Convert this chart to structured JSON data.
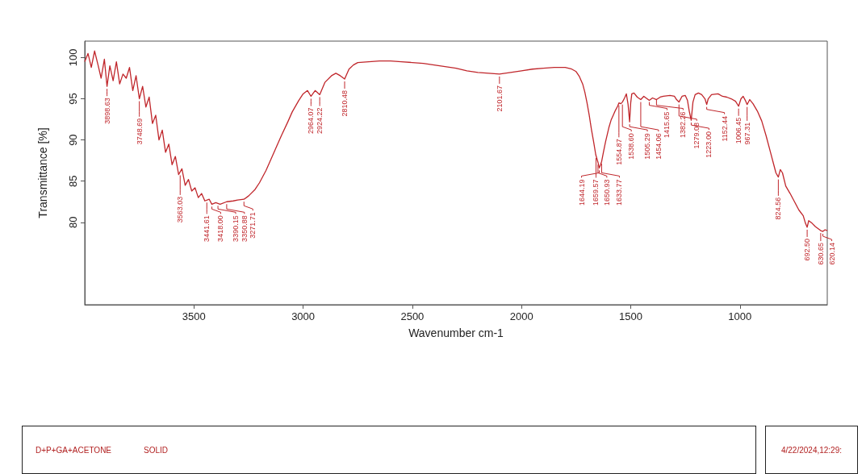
{
  "chart_data": {
    "type": "line",
    "xlabel": "Wavenumber cm-1",
    "ylabel": "Transmittance [%]",
    "xlim": [
      4000,
      600
    ],
    "xticks": [
      3500,
      3000,
      2500,
      2000,
      1500,
      1000
    ],
    "ylim": [
      70,
      102
    ],
    "yticks": [
      80,
      85,
      90,
      95,
      100
    ],
    "grid": false,
    "series": [
      {
        "color": "#c0262b",
        "x": [
          4000,
          3985,
          3970,
          3955,
          3940,
          3925,
          3910,
          3898,
          3885,
          3870,
          3855,
          3840,
          3825,
          3810,
          3795,
          3780,
          3765,
          3750,
          3735,
          3720,
          3705,
          3690,
          3675,
          3660,
          3645,
          3630,
          3615,
          3600,
          3585,
          3570,
          3555,
          3540,
          3525,
          3510,
          3495,
          3480,
          3465,
          3450,
          3430,
          3418,
          3400,
          3380,
          3350,
          3320,
          3300,
          3271,
          3250,
          3220,
          3200,
          3170,
          3150,
          3120,
          3100,
          3070,
          3050,
          3020,
          3000,
          2980,
          2964,
          2945,
          2924,
          2900,
          2870,
          2850,
          2830,
          2810,
          2790,
          2770,
          2750,
          2700,
          2650,
          2600,
          2550,
          2500,
          2450,
          2400,
          2350,
          2300,
          2250,
          2200,
          2150,
          2101,
          2050,
          2000,
          1950,
          1900,
          1850,
          1800,
          1770,
          1750,
          1735,
          1720,
          1710,
          1700,
          1690,
          1680,
          1670,
          1660,
          1650,
          1644,
          1638,
          1633,
          1625,
          1615,
          1600,
          1590,
          1580,
          1570,
          1560,
          1554,
          1545,
          1538,
          1528,
          1520,
          1512,
          1505,
          1500,
          1495,
          1485,
          1470,
          1454,
          1440,
          1425,
          1415,
          1400,
          1382,
          1365,
          1350,
          1320,
          1300,
          1290,
          1279,
          1265,
          1250,
          1240,
          1232,
          1223,
          1215,
          1205,
          1190,
          1175,
          1160,
          1152,
          1145,
          1130,
          1100,
          1080,
          1060,
          1040,
          1020,
          1006,
          995,
          985,
          975,
          967,
          955,
          940,
          920,
          900,
          880,
          860,
          845,
          835,
          824,
          815,
          805,
          790,
          770,
          750,
          730,
          710,
          700,
          692,
          685,
          670,
          655,
          640,
          630,
          620,
          610,
          600
        ],
        "values": [
          99.5,
          100.5,
          98.8,
          100.8,
          99.2,
          97.5,
          99.8,
          96.5,
          99.0,
          97.2,
          99.5,
          96.8,
          98.0,
          97.5,
          98.8,
          96.0,
          97.8,
          95.0,
          96.5,
          94.0,
          95.2,
          92.0,
          93.0,
          90.0,
          91.2,
          88.5,
          89.5,
          87.0,
          88.0,
          85.8,
          86.5,
          84.5,
          85.2,
          83.8,
          84.2,
          83.0,
          83.5,
          82.6,
          82.8,
          82.2,
          82.4,
          82.2,
          82.5,
          82.6,
          82.7,
          82.8,
          83.2,
          84.0,
          84.8,
          86.3,
          87.5,
          89.3,
          90.5,
          92.2,
          93.4,
          94.8,
          95.6,
          96.0,
          95.3,
          96.0,
          95.5,
          97.0,
          97.8,
          98.1,
          97.8,
          97.4,
          98.6,
          99.1,
          99.4,
          99.5,
          99.6,
          99.6,
          99.5,
          99.4,
          99.3,
          99.1,
          98.9,
          98.7,
          98.4,
          98.2,
          98.1,
          98.0,
          98.2,
          98.4,
          98.6,
          98.7,
          98.8,
          98.8,
          98.6,
          98.3,
          97.7,
          96.8,
          95.8,
          94.5,
          93.0,
          91.3,
          89.8,
          88.2,
          87.3,
          86.6,
          87.0,
          87.4,
          88.5,
          89.8,
          91.5,
          92.4,
          93.0,
          93.6,
          94.1,
          94.5,
          94.4,
          94.6,
          95.1,
          95.6,
          94.3,
          92.2,
          94.5,
          95.6,
          95.7,
          95.2,
          94.9,
          95.3,
          95.0,
          94.8,
          95.1,
          94.9,
          95.2,
          95.3,
          95.4,
          95.3,
          94.9,
          94.6,
          95.3,
          95.4,
          94.8,
          93.5,
          92.4,
          94.6,
          95.5,
          95.7,
          95.5,
          95.0,
          94.3,
          95.0,
          95.5,
          95.6,
          95.3,
          95.2,
          95.0,
          94.7,
          94.1,
          95.0,
          95.3,
          94.8,
          94.3,
          94.9,
          94.4,
          93.5,
          92.3,
          90.5,
          88.5,
          87.0,
          86.0,
          85.5,
          86.4,
          86.0,
          84.4,
          83.5,
          82.5,
          81.5,
          80.8,
          79.9,
          79.4,
          80.2,
          79.9,
          79.5,
          79.2,
          79.0,
          78.9,
          79.1,
          79.0
        ]
      }
    ],
    "annotations": [
      {
        "text": "3898.63",
        "x": 3898,
        "y": 96.5
      },
      {
        "text": "3748.69",
        "x": 3750,
        "y": 95.0
      },
      {
        "text": "3563.03",
        "x": 3563,
        "y": 86.0
      },
      {
        "text": "3441.61",
        "x": 3441,
        "y": 82.7
      },
      {
        "text": "3418.00",
        "x": 3418,
        "y": 82.2
      },
      {
        "text": "3390.15",
        "x": 3390,
        "y": 82.3
      },
      {
        "text": "3350.88",
        "x": 3350,
        "y": 82.5
      },
      {
        "text": "3271.71",
        "x": 3271,
        "y": 82.8
      },
      {
        "text": "2964.07",
        "x": 2964,
        "y": 95.3
      },
      {
        "text": "2924.22",
        "x": 2924,
        "y": 95.5
      },
      {
        "text": "2810.48",
        "x": 2810,
        "y": 97.4
      },
      {
        "text": "2101.67",
        "x": 2101,
        "y": 98.0
      },
      {
        "text": "1659.57",
        "x": 1659,
        "y": 88.1
      },
      {
        "text": "1650.93",
        "x": 1650,
        "y": 87.3
      },
      {
        "text": "1644.19",
        "x": 1644,
        "y": 86.6
      },
      {
        "text": "1633.77",
        "x": 1633,
        "y": 87.4
      },
      {
        "text": "1554.87",
        "x": 1554,
        "y": 94.5
      },
      {
        "text": "1538.60",
        "x": 1538,
        "y": 94.6
      },
      {
        "text": "1505.29",
        "x": 1505,
        "y": 92.2
      },
      {
        "text": "1454.06",
        "x": 1454,
        "y": 94.9
      },
      {
        "text": "1415.65",
        "x": 1415,
        "y": 94.9
      },
      {
        "text": "1382.26",
        "x": 1382,
        "y": 95.2
      },
      {
        "text": "1279.08",
        "x": 1279,
        "y": 94.6
      },
      {
        "text": "1223.00",
        "x": 1223,
        "y": 92.4
      },
      {
        "text": "1152.44",
        "x": 1152,
        "y": 94.3
      },
      {
        "text": "1006.45",
        "x": 1006,
        "y": 94.1
      },
      {
        "text": "967.31",
        "x": 967,
        "y": 94.3
      },
      {
        "text": "824.56",
        "x": 824,
        "y": 85.5
      },
      {
        "text": "692.50",
        "x": 692,
        "y": 79.4
      },
      {
        "text": "630.65",
        "x": 630,
        "y": 79.0
      },
      {
        "text": "620.14",
        "x": 620,
        "y": 78.9
      },
      "D+P+GA+ACETONE",
      "SOLID",
      "4/22/2024,12:29:"
    ]
  }
}
